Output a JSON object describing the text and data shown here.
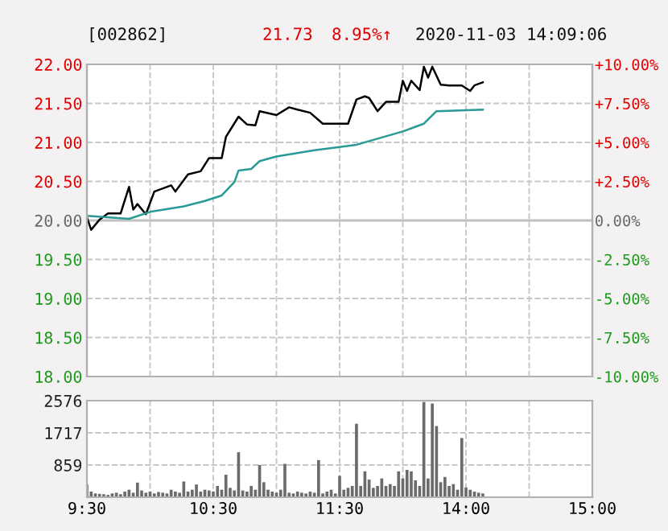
{
  "chart_data": [
    {
      "type": "line",
      "title": "[002862]",
      "annotations": [
        "21.73",
        "8.95%↑",
        "2020-11-03 14:09:06"
      ],
      "categories": [
        null,
        null,
        null,
        null,
        null,
        null,
        null,
        null,
        null,
        null,
        null,
        null,
        null,
        null,
        null,
        null,
        null,
        null,
        null,
        null,
        null,
        null,
        null,
        null,
        null,
        null,
        null,
        null,
        null,
        null,
        null,
        null,
        null,
        null,
        null,
        null,
        null,
        null,
        null,
        null,
        null,
        null,
        null,
        null,
        null,
        null,
        null,
        null,
        null,
        null,
        null,
        null,
        null,
        null,
        null,
        null,
        null,
        null,
        null,
        null,
        null,
        null,
        null,
        null,
        null,
        null,
        null,
        null,
        null,
        null,
        null,
        null,
        null,
        null,
        null,
        null,
        null,
        null,
        null,
        null,
        null,
        null,
        null,
        null,
        null,
        null,
        null,
        null,
        null,
        null,
        null,
        null,
        null,
        null,
        null,
        null,
        null,
        null,
        null,
        null,
        null,
        null,
        null,
        null,
        null,
        null,
        null,
        null,
        null,
        null,
        null,
        null,
        null,
        null,
        null,
        null,
        null,
        null,
        null,
        null,
        null
      ],
      "series": [
        {
          "color": "#000000",
          "values": [
            20.04,
            19.88,
            null,
            20.01,
            null,
            20.09,
            null,
            null,
            20.09,
            null,
            20.43,
            20.14,
            20.21,
            null,
            20.08,
            null,
            20.37,
            null,
            null,
            null,
            20.45,
            20.37,
            null,
            null,
            20.59,
            null,
            null,
            20.63,
            null,
            20.8,
            null,
            null,
            20.8,
            21.07,
            null,
            null,
            21.33,
            null,
            21.23,
            null,
            21.22,
            21.4,
            null,
            null,
            null,
            21.35,
            null,
            null,
            21.45,
            null,
            21.42,
            null,
            null,
            21.38,
            null,
            null,
            21.24,
            null,
            null,
            null,
            21.24,
            null,
            21.24,
            null,
            21.55,
            null,
            21.59,
            21.57,
            null,
            21.4,
            null,
            21.52,
            null,
            null,
            21.52,
            21.79,
            21.66,
            21.79,
            null,
            21.67,
            21.97,
            21.83,
            21.97,
            null,
            21.74,
            null,
            21.73,
            null,
            null,
            21.73,
            null,
            21.66,
            21.73,
            null,
            21.77,
            null,
            null,
            null,
            null,
            null,
            null,
            null,
            null,
            null,
            null,
            null,
            null,
            null,
            null,
            null,
            null,
            null,
            null,
            null,
            null,
            null,
            null,
            null,
            null,
            null,
            null
          ]
        },
        {
          "color": "#2a9a96",
          "values": [
            20.06,
            null,
            null,
            null,
            null,
            null,
            null,
            null,
            null,
            null,
            20.02,
            null,
            null,
            null,
            null,
            20.11,
            null,
            null,
            null,
            null,
            null,
            null,
            null,
            20.18,
            null,
            null,
            null,
            null,
            20.25,
            null,
            null,
            null,
            20.32,
            null,
            null,
            20.49,
            20.64,
            null,
            null,
            20.66,
            null,
            20.76,
            null,
            null,
            null,
            20.82,
            null,
            null,
            null,
            null,
            null,
            null,
            null,
            null,
            20.9,
            null,
            null,
            null,
            null,
            null,
            null,
            null,
            null,
            null,
            20.97,
            null,
            null,
            null,
            null,
            null,
            null,
            null,
            null,
            null,
            null,
            21.14,
            null,
            null,
            null,
            null,
            21.24,
            null,
            null,
            21.4,
            null,
            null,
            null,
            null,
            null,
            null,
            null,
            null,
            null,
            null,
            21.42,
            null,
            null,
            null,
            null,
            null,
            null,
            null,
            null,
            null,
            null,
            null,
            null,
            null,
            null,
            null,
            null,
            null,
            null,
            null,
            null,
            null,
            null,
            null,
            null,
            null,
            null
          ]
        }
      ],
      "ylim": [
        18,
        22
      ],
      "yticks": [
        {
          "value": 18,
          "label": "18.00"
        },
        {
          "value": 18.5,
          "label": "18.50"
        },
        {
          "value": 19,
          "label": "19.00"
        },
        {
          "value": 19.5,
          "label": "19.50"
        },
        {
          "value": 20,
          "label": "20.00"
        },
        {
          "value": 20.5,
          "label": "20.50"
        },
        {
          "value": 21,
          "label": "21.00"
        },
        {
          "value": 21.5,
          "label": "21.50"
        },
        {
          "value": 22,
          "label": "22.00"
        }
      ],
      "y2lim": [
        -10,
        10
      ],
      "y2ticks": [
        {
          "value": -10,
          "label": "-10.00%"
        },
        {
          "value": -7.5,
          "label": "-7.50%"
        },
        {
          "value": -5,
          "label": "-5.00%"
        },
        {
          "value": -2.5,
          "label": "-2.50%"
        },
        {
          "value": 0,
          "label": "0.00%"
        },
        {
          "value": 2.5,
          "label": "+2.50%"
        },
        {
          "value": 5,
          "label": "+5.00%"
        },
        {
          "value": 7.5,
          "label": "+7.50%"
        },
        {
          "value": 10,
          "label": "+10.00%"
        }
      ],
      "ref_lines": [
        {
          "axis": "y",
          "value": 20,
          "color": "#c0c0c0",
          "line_style": "solid"
        }
      ],
      "tick_labels": "y",
      "grid": true
    },
    {
      "type": "bar",
      "color": "#6b6b6b",
      "categories": [
        "9:30",
        null,
        null,
        null,
        null,
        null,
        null,
        null,
        null,
        null,
        null,
        null,
        null,
        null,
        null,
        null,
        null,
        null,
        null,
        null,
        null,
        null,
        null,
        null,
        null,
        null,
        null,
        null,
        null,
        null,
        "10:30",
        null,
        null,
        null,
        null,
        null,
        null,
        null,
        null,
        null,
        null,
        null,
        null,
        null,
        null,
        null,
        null,
        null,
        null,
        null,
        null,
        null,
        null,
        null,
        null,
        null,
        null,
        null,
        null,
        null,
        "11:30",
        null,
        null,
        null,
        null,
        null,
        null,
        null,
        null,
        null,
        null,
        null,
        null,
        null,
        null,
        null,
        null,
        null,
        null,
        null,
        null,
        null,
        null,
        null,
        null,
        null,
        null,
        null,
        null,
        null,
        "14:00",
        null,
        null,
        null,
        null,
        null,
        null,
        null,
        null,
        null,
        null,
        null,
        null,
        null,
        null,
        null,
        null,
        null,
        null,
        null,
        null,
        null,
        null,
        null,
        null,
        null,
        null,
        null,
        null,
        null,
        "15:00"
      ],
      "values": [
        340,
        150,
        100,
        90,
        80,
        60,
        100,
        120,
        80,
        150,
        200,
        120,
        390,
        180,
        120,
        150,
        100,
        140,
        120,
        100,
        200,
        150,
        120,
        420,
        150,
        200,
        340,
        150,
        200,
        180,
        150,
        300,
        200,
        600,
        250,
        180,
        1200,
        180,
        150,
        300,
        200,
        860,
        400,
        200,
        150,
        120,
        200,
        890,
        120,
        100,
        150,
        120,
        100,
        150,
        120,
        990,
        100,
        150,
        200,
        100,
        570,
        200,
        250,
        300,
        1960,
        300,
        690,
        470,
        250,
        300,
        500,
        300,
        350,
        300,
        690,
        500,
        730,
        690,
        450,
        300,
        2540,
        500,
        2500,
        1900,
        400,
        540,
        300,
        350,
        200,
        1580,
        260,
        200,
        150,
        120,
        100,
        null,
        null,
        null,
        null,
        null,
        null,
        null,
        null,
        null,
        null,
        null,
        null,
        null,
        null,
        null,
        null,
        null,
        null,
        null,
        null,
        null,
        null,
        null,
        null,
        null,
        null
      ],
      "ylim": [
        0,
        2576
      ],
      "yticks": [
        {
          "value": 859,
          "label": "859"
        },
        {
          "value": 1717,
          "label": "1717"
        },
        {
          "value": 2576,
          "label": "2576"
        }
      ],
      "grid": true
    }
  ]
}
